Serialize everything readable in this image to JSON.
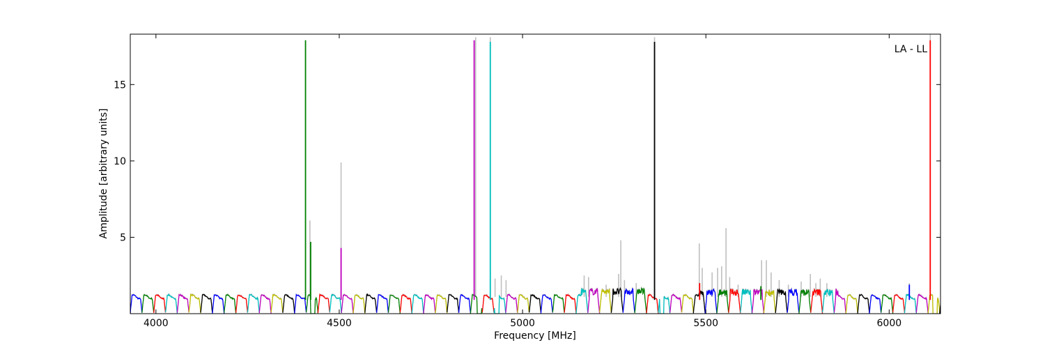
{
  "chart_data": {
    "type": "line",
    "title": "",
    "xlabel": "Frequency [MHz]",
    "ylabel": "Amplitude [arbitrary units]",
    "annotation": "LA - LL",
    "xlim": [
      3930,
      6140
    ],
    "ylim": [
      0,
      18.3
    ],
    "xticks": [
      4000,
      4500,
      5000,
      5500,
      6000
    ],
    "yticks": [
      5,
      10,
      15
    ],
    "grid": false,
    "legend": "none",
    "band_width_mhz": 32,
    "band_colors": [
      "#0000ff",
      "#008000",
      "#ff0000",
      "#00bfbf",
      "#bf00bf",
      "#bfbf00",
      "#000000"
    ],
    "background_series_color": "#bfbfbf",
    "background_spikes": [
      {
        "x": 4420,
        "y": 6.1
      },
      {
        "x": 4505,
        "y": 9.9
      },
      {
        "x": 4872,
        "y": 18.1
      },
      {
        "x": 4912,
        "y": 18.1
      },
      {
        "x": 4925,
        "y": 2.3
      },
      {
        "x": 4942,
        "y": 2.5
      },
      {
        "x": 4955,
        "y": 2.2
      },
      {
        "x": 5168,
        "y": 2.5
      },
      {
        "x": 5180,
        "y": 2.4
      },
      {
        "x": 5228,
        "y": 1.9
      },
      {
        "x": 5262,
        "y": 2.6
      },
      {
        "x": 5268,
        "y": 4.8
      },
      {
        "x": 5278,
        "y": 2.2
      },
      {
        "x": 5310,
        "y": 2.0
      },
      {
        "x": 5360,
        "y": 18.1
      },
      {
        "x": 5482,
        "y": 4.6
      },
      {
        "x": 5490,
        "y": 3.0
      },
      {
        "x": 5517,
        "y": 2.7
      },
      {
        "x": 5532,
        "y": 3.0
      },
      {
        "x": 5543,
        "y": 3.1
      },
      {
        "x": 5555,
        "y": 5.6
      },
      {
        "x": 5565,
        "y": 2.4
      },
      {
        "x": 5588,
        "y": 1.9
      },
      {
        "x": 5652,
        "y": 3.5
      },
      {
        "x": 5665,
        "y": 3.5
      },
      {
        "x": 5678,
        "y": 2.7
      },
      {
        "x": 5700,
        "y": 2.2
      },
      {
        "x": 5725,
        "y": 1.9
      },
      {
        "x": 5760,
        "y": 2.1
      },
      {
        "x": 5785,
        "y": 2.6
      },
      {
        "x": 5800,
        "y": 2.0
      },
      {
        "x": 5812,
        "y": 2.3
      },
      {
        "x": 5830,
        "y": 2.0
      },
      {
        "x": 6055,
        "y": 2.0
      },
      {
        "x": 6112,
        "y": 18.3
      }
    ],
    "spikes": [
      {
        "x": 4408,
        "y": 17.9,
        "color": "#008000"
      },
      {
        "x": 4422,
        "y": 4.7,
        "color": "#008000"
      },
      {
        "x": 4505,
        "y": 4.3,
        "color": "#bf00bf"
      },
      {
        "x": 4868,
        "y": 17.9,
        "color": "#bf00bf"
      },
      {
        "x": 4912,
        "y": 17.8,
        "color": "#00bfbf"
      },
      {
        "x": 5360,
        "y": 17.8,
        "color": "#000000"
      },
      {
        "x": 5483,
        "y": 2.0,
        "color": "#ff0000"
      },
      {
        "x": 5650,
        "y": 1.8,
        "color": "#008000"
      },
      {
        "x": 6055,
        "y": 1.9,
        "color": "#0000ff"
      },
      {
        "x": 6112,
        "y": 17.9,
        "color": "#ff0000"
      }
    ],
    "dips": [
      {
        "x": 4428,
        "depth": 0.0
      },
      {
        "x": 4882,
        "depth": 0.0
      },
      {
        "x": 4930,
        "depth": 0.0
      },
      {
        "x": 5380,
        "depth": 0.0
      },
      {
        "x": 6125,
        "depth": 0.0
      }
    ],
    "noisy_regions": [
      {
        "from": 5160,
        "to": 5340,
        "level": 1.35
      },
      {
        "from": 5480,
        "to": 5860,
        "level": 1.3
      }
    ]
  }
}
